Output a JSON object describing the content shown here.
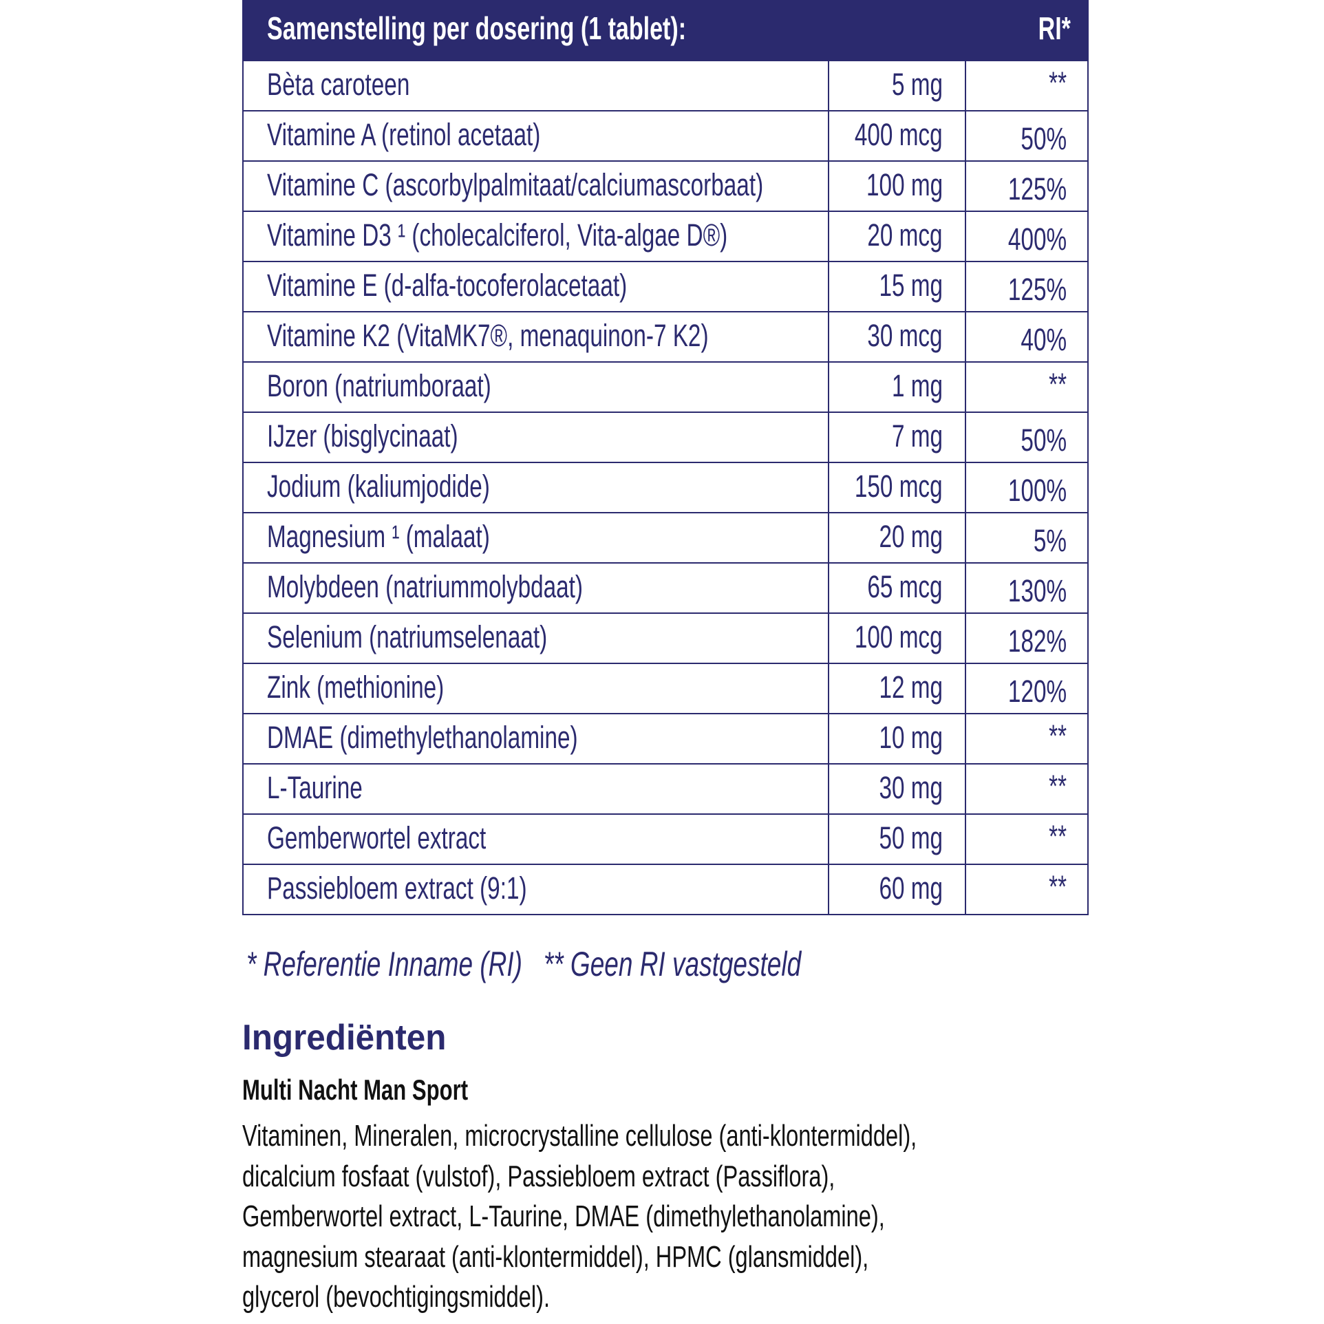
{
  "table": {
    "header_title": "Samenstelling per dosering (1 tablet):",
    "header_ri": "RI*",
    "rows": [
      {
        "name": "Bèta caroteen",
        "amount": "5 mg",
        "ri": "**"
      },
      {
        "name": "Vitamine A (retinol acetaat)",
        "amount": "400 mcg",
        "ri": "50%"
      },
      {
        "name": "Vitamine C (ascorbylpalmitaat/calciumascorbaat)",
        "amount": "100 mg",
        "ri": "125%"
      },
      {
        "name": "Vitamine D3 ¹ (cholecalciferol, Vita-algae D®)",
        "amount": "20 mcg",
        "ri": "400%"
      },
      {
        "name": "Vitamine E (d-alfa-tocoferolacetaat)",
        "amount": "15 mg",
        "ri": "125%"
      },
      {
        "name": "Vitamine K2 (VitaMK7®, menaquinon-7 K2)",
        "amount": "30 mcg",
        "ri": "40%"
      },
      {
        "name": "Boron (natriumboraat)",
        "amount": "1 mg",
        "ri": "**"
      },
      {
        "name": "IJzer (bisglycinaat)",
        "amount": "7 mg",
        "ri": "50%"
      },
      {
        "name": "Jodium (kaliumjodide)",
        "amount": "150 mcg",
        "ri": "100%"
      },
      {
        "name": "Magnesium ¹ (malaat)",
        "amount": "20 mg",
        "ri": "5%"
      },
      {
        "name": "Molybdeen (natriummolybdaat)",
        "amount": "65 mcg",
        "ri": "130%"
      },
      {
        "name": "Selenium (natriumselenaat)",
        "amount": "100 mcg",
        "ri": "182%"
      },
      {
        "name": "Zink (methionine)",
        "amount": "12 mg",
        "ri": "120%"
      },
      {
        "name": "DMAE (dimethylethanolamine)",
        "amount": "10 mg",
        "ri": "**"
      },
      {
        "name": "L-Taurine",
        "amount": "30 mg",
        "ri": "**"
      },
      {
        "name": "Gemberwortel extract",
        "amount": "50 mg",
        "ri": "**"
      },
      {
        "name": "Passiebloem extract (9:1)",
        "amount": "60 mg",
        "ri": "**"
      }
    ]
  },
  "footnote": "* Referentie Inname (RI)   ** Geen RI vastgesteld",
  "ingredients": {
    "title": "Ingrediënten",
    "product": "Multi Nacht Man Sport",
    "lines": [
      "Vitaminen, Mineralen, microcrystalline cellulose (anti-klontermiddel),",
      "dicalcium fosfaat (vulstof), Passiebloem extract (Passiflora),",
      "Gemberwortel extract, L-Taurine, DMAE (dimethylethanolamine),",
      "magnesium stearaat (anti-klontermiddel), HPMC (glansmiddel),",
      "glycerol (bevochtigingsmiddel)."
    ]
  },
  "colors": {
    "brand": "#2b2a6e",
    "text": "#111111"
  }
}
